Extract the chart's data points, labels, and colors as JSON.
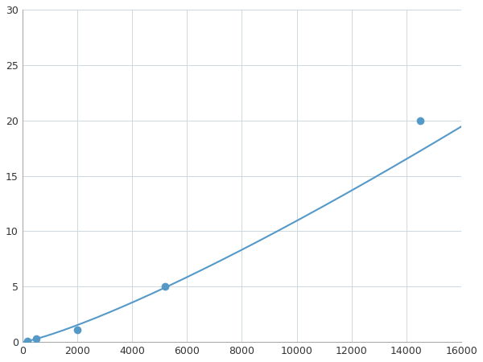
{
  "x_points": [
    200,
    500,
    2000,
    5200,
    14500
  ],
  "y_points": [
    0.1,
    0.3,
    1.1,
    5.0,
    20.0
  ],
  "line_color": "#5599c8",
  "marker_color": "#5599c8",
  "marker_size": 7,
  "marker_style": "o",
  "line_width": 1.5,
  "xlim": [
    0,
    16000
  ],
  "ylim": [
    0,
    30
  ],
  "xticks": [
    0,
    2000,
    4000,
    6000,
    8000,
    10000,
    12000,
    14000,
    16000
  ],
  "yticks": [
    0,
    5,
    10,
    15,
    20,
    25,
    30
  ],
  "grid_color": "#d0d8e0",
  "grid_alpha": 1.0,
  "background_color": "#ffffff",
  "tick_labelsize": 9,
  "spine_color": "#aaaaaa"
}
